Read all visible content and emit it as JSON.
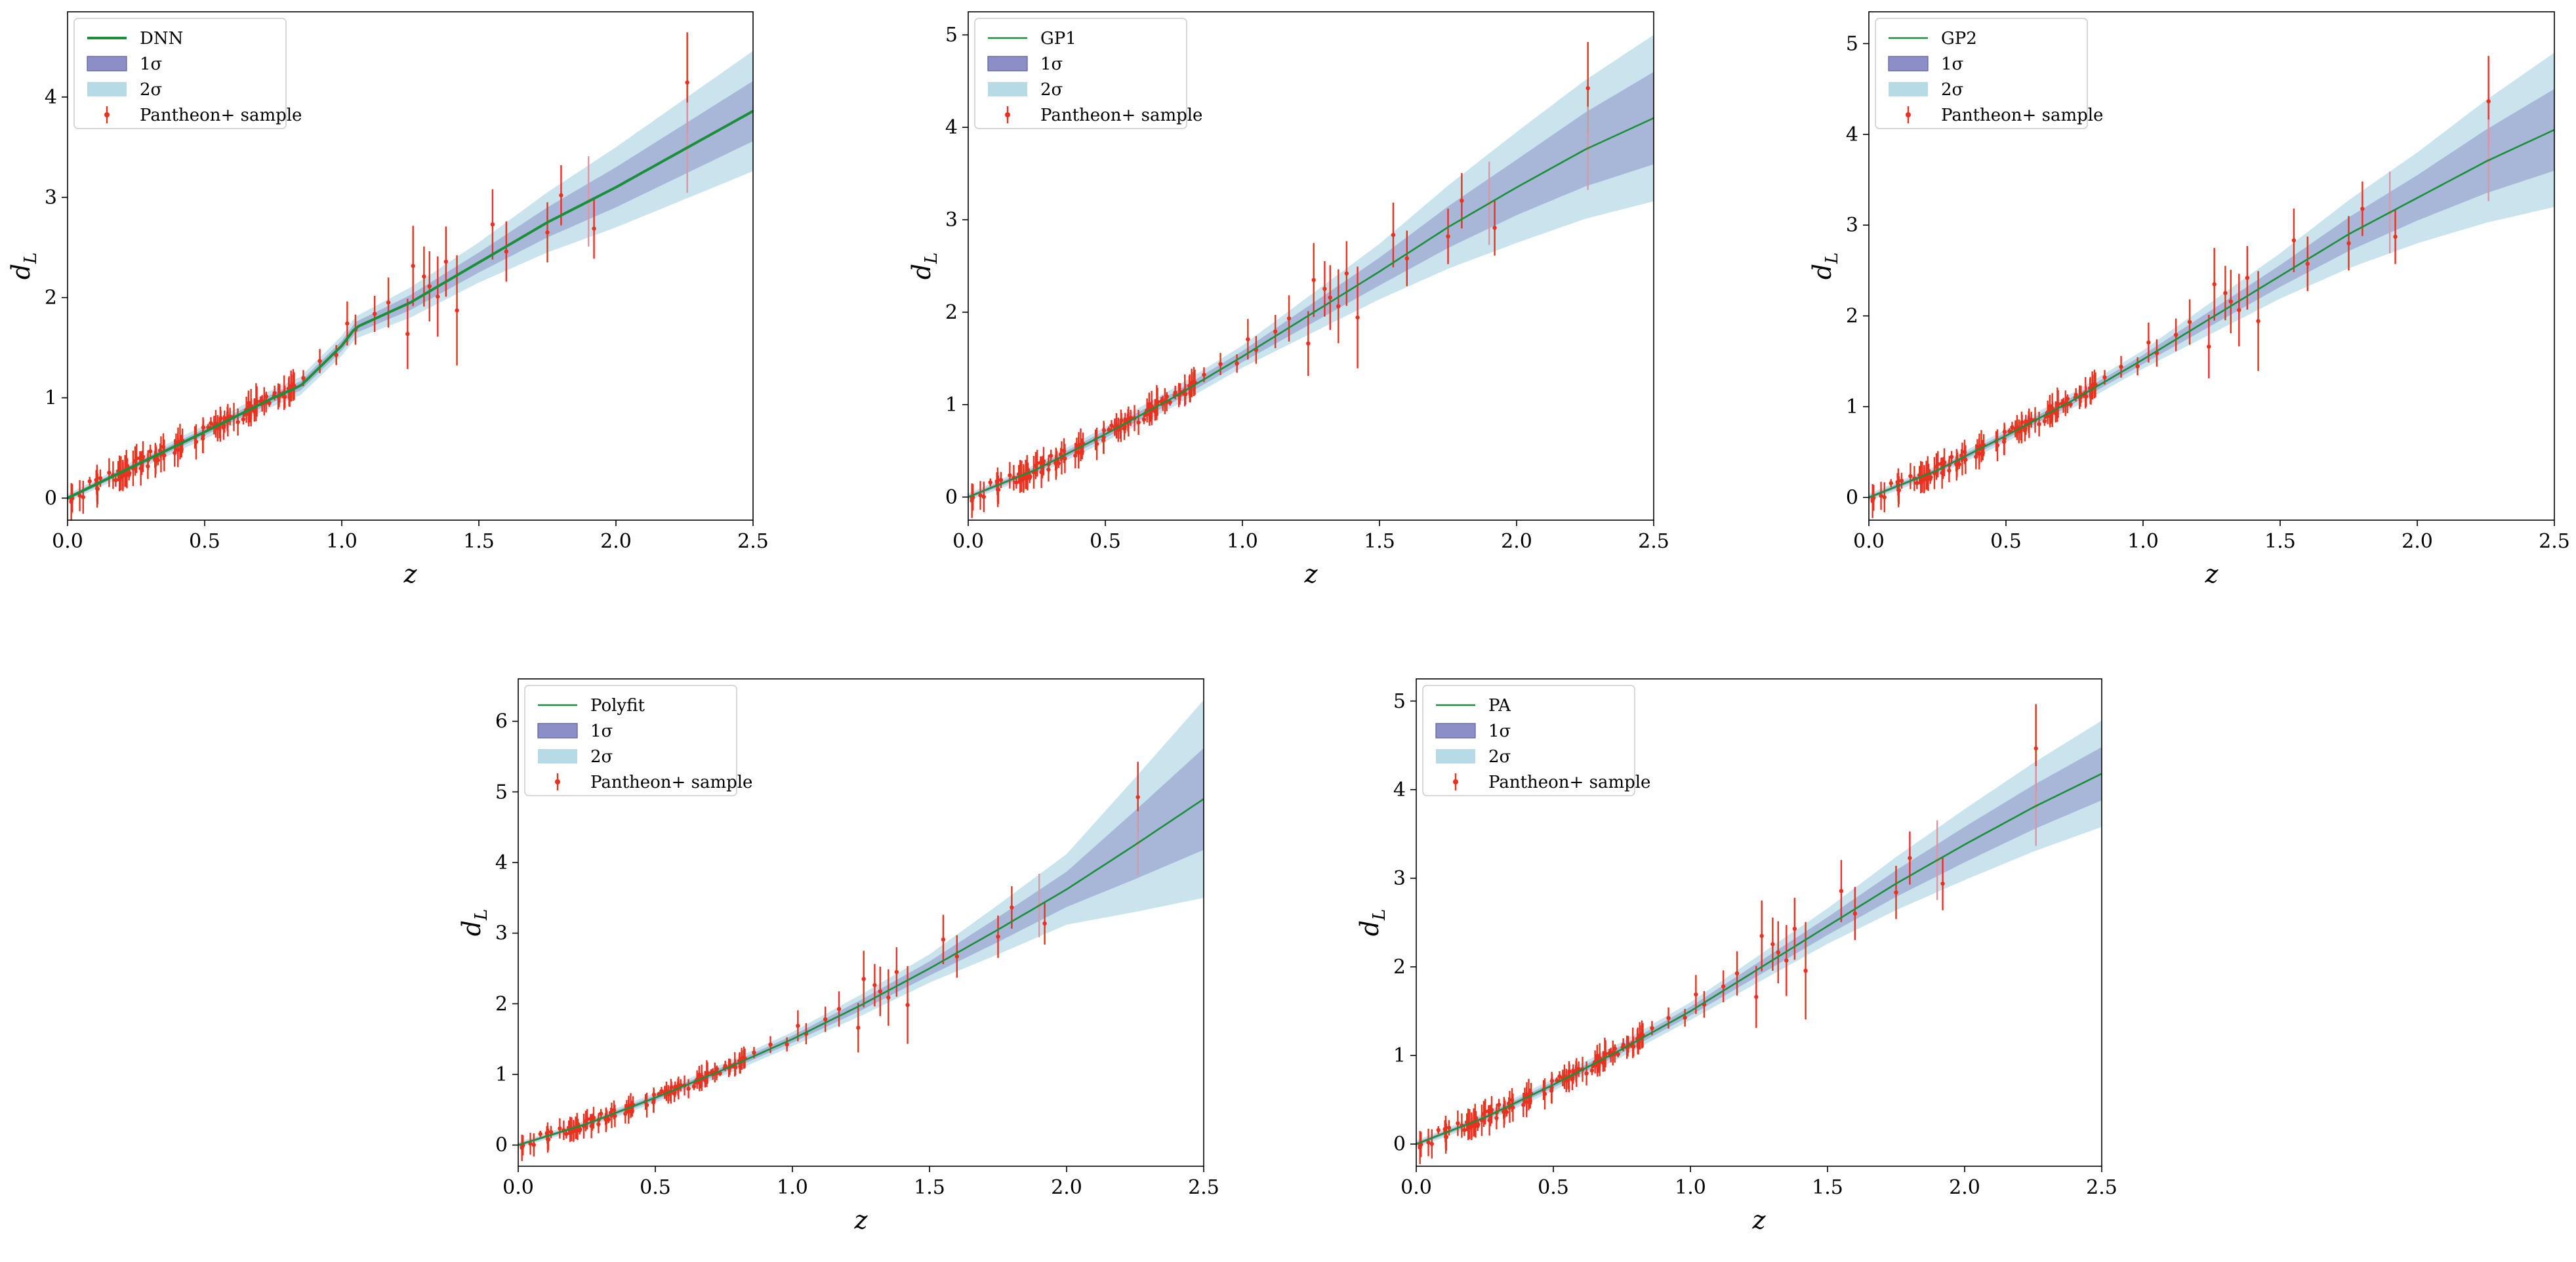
{
  "legend_labels": {
    "band1": "1σ",
    "band2": "2σ",
    "data": "Pantheon+ sample"
  },
  "axes_text": {
    "xlabel": "z",
    "ylabel_main": "d",
    "ylabel_sub": "L"
  },
  "colors": {
    "fit_line": "#1a8f3a",
    "band1": "#8c8fc7",
    "band2": "#b7dbe6",
    "data": "#e8321f",
    "data_faint": "#d69aa6"
  },
  "chart_data": [
    {
      "type": "line",
      "series": [
        {
          "name": "DNN",
          "kind": "fit",
          "x": [
            0,
            0.25,
            0.5,
            0.75,
            0.85,
            1.0,
            1.05,
            1.25,
            1.5,
            1.75,
            2.0,
            2.25,
            2.5
          ],
          "y": [
            0,
            0.33,
            0.66,
            1.0,
            1.12,
            1.52,
            1.7,
            1.95,
            2.35,
            2.75,
            3.1,
            3.48,
            3.86
          ]
        },
        {
          "name": "1σ",
          "kind": "band",
          "half_width_x": [
            0,
            1.0,
            1.5,
            2.0,
            2.5
          ],
          "half_width": [
            0.02,
            0.05,
            0.1,
            0.2,
            0.3
          ]
        },
        {
          "name": "2σ",
          "kind": "band",
          "half_width_x": [
            0,
            1.0,
            1.5,
            2.0,
            2.5
          ],
          "half_width": [
            0.04,
            0.1,
            0.2,
            0.4,
            0.6
          ]
        },
        {
          "name": "Pantheon+ sample",
          "kind": "errorbar"
        }
      ],
      "xlim": [
        0,
        2.5
      ],
      "ylim": [
        -0.22,
        4.85
      ],
      "xticks": [
        "0.0",
        "0.5",
        "1.0",
        "1.5",
        "2.0",
        "2.5"
      ],
      "yticks": [
        "0",
        "1",
        "2",
        "3",
        "4"
      ],
      "legend": "top-left",
      "grid": false
    },
    {
      "type": "line",
      "series": [
        {
          "name": "GP1",
          "kind": "fit",
          "x": [
            0,
            0.25,
            0.5,
            0.75,
            1.0,
            1.25,
            1.5,
            1.75,
            2.0,
            2.25,
            2.5
          ],
          "y": [
            0,
            0.3,
            0.68,
            1.08,
            1.52,
            1.98,
            2.44,
            2.92,
            3.35,
            3.76,
            4.1
          ]
        },
        {
          "name": "1σ",
          "kind": "band",
          "half_width_x": [
            0,
            1.0,
            1.5,
            2.0,
            2.5
          ],
          "half_width": [
            0.02,
            0.06,
            0.15,
            0.3,
            0.5
          ]
        },
        {
          "name": "2σ",
          "kind": "band",
          "half_width_x": [
            0,
            1.0,
            1.5,
            2.0,
            2.5
          ],
          "half_width": [
            0.04,
            0.12,
            0.3,
            0.6,
            0.9
          ]
        },
        {
          "name": "Pantheon+ sample",
          "kind": "errorbar"
        }
      ],
      "xlim": [
        0,
        2.5
      ],
      "ylim": [
        -0.25,
        5.25
      ],
      "xticks": [
        "0.0",
        "0.5",
        "1.0",
        "1.5",
        "2.0",
        "2.5"
      ],
      "yticks": [
        "0",
        "1",
        "2",
        "3",
        "4",
        "5"
      ],
      "legend": "top-left",
      "grid": false
    },
    {
      "type": "line",
      "series": [
        {
          "name": "GP2",
          "kind": "fit",
          "x": [
            0,
            0.25,
            0.5,
            0.75,
            1.0,
            1.25,
            1.5,
            1.75,
            2.0,
            2.25,
            2.5
          ],
          "y": [
            0,
            0.3,
            0.68,
            1.08,
            1.52,
            1.98,
            2.44,
            2.9,
            3.3,
            3.7,
            4.05
          ]
        },
        {
          "name": "1σ",
          "kind": "band",
          "half_width_x": [
            0,
            1.0,
            1.5,
            2.0,
            2.5
          ],
          "half_width": [
            0.02,
            0.05,
            0.12,
            0.25,
            0.45
          ]
        },
        {
          "name": "2σ",
          "kind": "band",
          "half_width_x": [
            0,
            1.0,
            1.5,
            2.0,
            2.5
          ],
          "half_width": [
            0.04,
            0.1,
            0.25,
            0.5,
            0.85
          ]
        },
        {
          "name": "Pantheon+ sample",
          "kind": "errorbar"
        }
      ],
      "xlim": [
        0,
        2.5
      ],
      "ylim": [
        -0.25,
        5.35
      ],
      "xticks": [
        "0.0",
        "0.5",
        "1.0",
        "1.5",
        "2.0",
        "2.5"
      ],
      "yticks": [
        "0",
        "1",
        "2",
        "3",
        "4",
        "5"
      ],
      "legend": "top-left",
      "grid": false
    },
    {
      "type": "line",
      "series": [
        {
          "name": "Polyfit",
          "kind": "fit",
          "x": [
            0,
            0.25,
            0.5,
            0.75,
            1.0,
            1.25,
            1.5,
            1.75,
            2.0,
            2.25,
            2.5
          ],
          "y": [
            0,
            0.3,
            0.67,
            1.07,
            1.5,
            1.98,
            2.5,
            3.05,
            3.62,
            4.25,
            4.9
          ]
        },
        {
          "name": "1σ",
          "kind": "band",
          "half_width_x": [
            0,
            1.0,
            1.5,
            2.0,
            2.5
          ],
          "half_width": [
            0.02,
            0.05,
            0.1,
            0.25,
            0.72
          ]
        },
        {
          "name": "2σ",
          "kind": "band",
          "half_width_x": [
            0,
            1.0,
            1.5,
            2.0,
            2.5
          ],
          "half_width": [
            0.04,
            0.1,
            0.2,
            0.5,
            1.4
          ]
        },
        {
          "name": "Pantheon+ sample",
          "kind": "errorbar"
        }
      ],
      "xlim": [
        0,
        2.5
      ],
      "ylim": [
        -0.3,
        6.6
      ],
      "xticks": [
        "0.0",
        "0.5",
        "1.0",
        "1.5",
        "2.0",
        "2.5"
      ],
      "yticks": [
        "0",
        "1",
        "2",
        "3",
        "4",
        "5",
        "6"
      ],
      "legend": "top-left",
      "grid": false
    },
    {
      "type": "line",
      "series": [
        {
          "name": "PA",
          "kind": "fit",
          "x": [
            0,
            0.25,
            0.5,
            0.75,
            1.0,
            1.25,
            1.5,
            1.75,
            2.0,
            2.25,
            2.5
          ],
          "y": [
            0,
            0.3,
            0.67,
            1.07,
            1.5,
            1.98,
            2.46,
            2.94,
            3.38,
            3.8,
            4.18
          ]
        },
        {
          "name": "1σ",
          "kind": "band",
          "half_width_x": [
            0,
            1.0,
            1.5,
            2.0,
            2.5
          ],
          "half_width": [
            0.02,
            0.05,
            0.1,
            0.2,
            0.3
          ]
        },
        {
          "name": "2σ",
          "kind": "band",
          "half_width_x": [
            0,
            1.0,
            1.5,
            2.0,
            2.5
          ],
          "half_width": [
            0.04,
            0.1,
            0.2,
            0.4,
            0.6
          ]
        },
        {
          "name": "Pantheon+ sample",
          "kind": "errorbar"
        }
      ],
      "xlim": [
        0,
        2.5
      ],
      "ylim": [
        -0.25,
        5.25
      ],
      "xticks": [
        "0.0",
        "0.5",
        "1.0",
        "1.5",
        "2.0",
        "2.5"
      ],
      "yticks": [
        "0",
        "1",
        "2",
        "3",
        "4",
        "5"
      ],
      "legend": "top-left",
      "grid": false
    }
  ]
}
